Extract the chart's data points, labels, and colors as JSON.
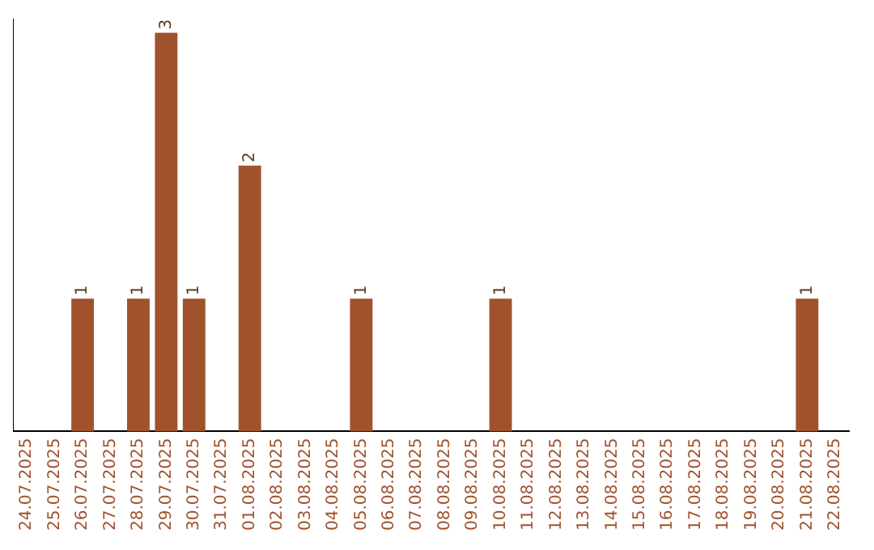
{
  "chart_data": {
    "type": "bar",
    "categories": [
      "24.07.2025",
      "25.07.2025",
      "26.07.2025",
      "27.07.2025",
      "28.07.2025",
      "29.07.2025",
      "30.07.2025",
      "31.07.2025",
      "01.08.2025",
      "02.08.2025",
      "03.08.2025",
      "04.08.2025",
      "05.08.2025",
      "06.08.2025",
      "07.08.2025",
      "08.08.2025",
      "09.08.2025",
      "10.08.2025",
      "11.08.2025",
      "12.08.2025",
      "13.08.2025",
      "14.08.2025",
      "15.08.2025",
      "16.08.2025",
      "17.08.2025",
      "18.08.2025",
      "19.08.2025",
      "20.08.2025",
      "21.08.2025",
      "22.08.2025"
    ],
    "values": [
      0,
      0,
      1,
      0,
      1,
      3,
      1,
      0,
      2,
      0,
      0,
      0,
      1,
      0,
      0,
      0,
      0,
      1,
      0,
      0,
      0,
      0,
      0,
      0,
      0,
      0,
      0,
      0,
      1,
      0
    ],
    "value_labels": [
      null,
      null,
      "1",
      null,
      "1",
      "3",
      "1",
      null,
      "2",
      null,
      null,
      null,
      "1",
      null,
      null,
      null,
      null,
      "1",
      null,
      null,
      null,
      null,
      null,
      null,
      null,
      null,
      null,
      null,
      "1",
      null
    ],
    "color": "#a0522d",
    "ylim": [
      0,
      3.1
    ],
    "tick_labels": "x",
    "grid": false,
    "legend": false
  }
}
